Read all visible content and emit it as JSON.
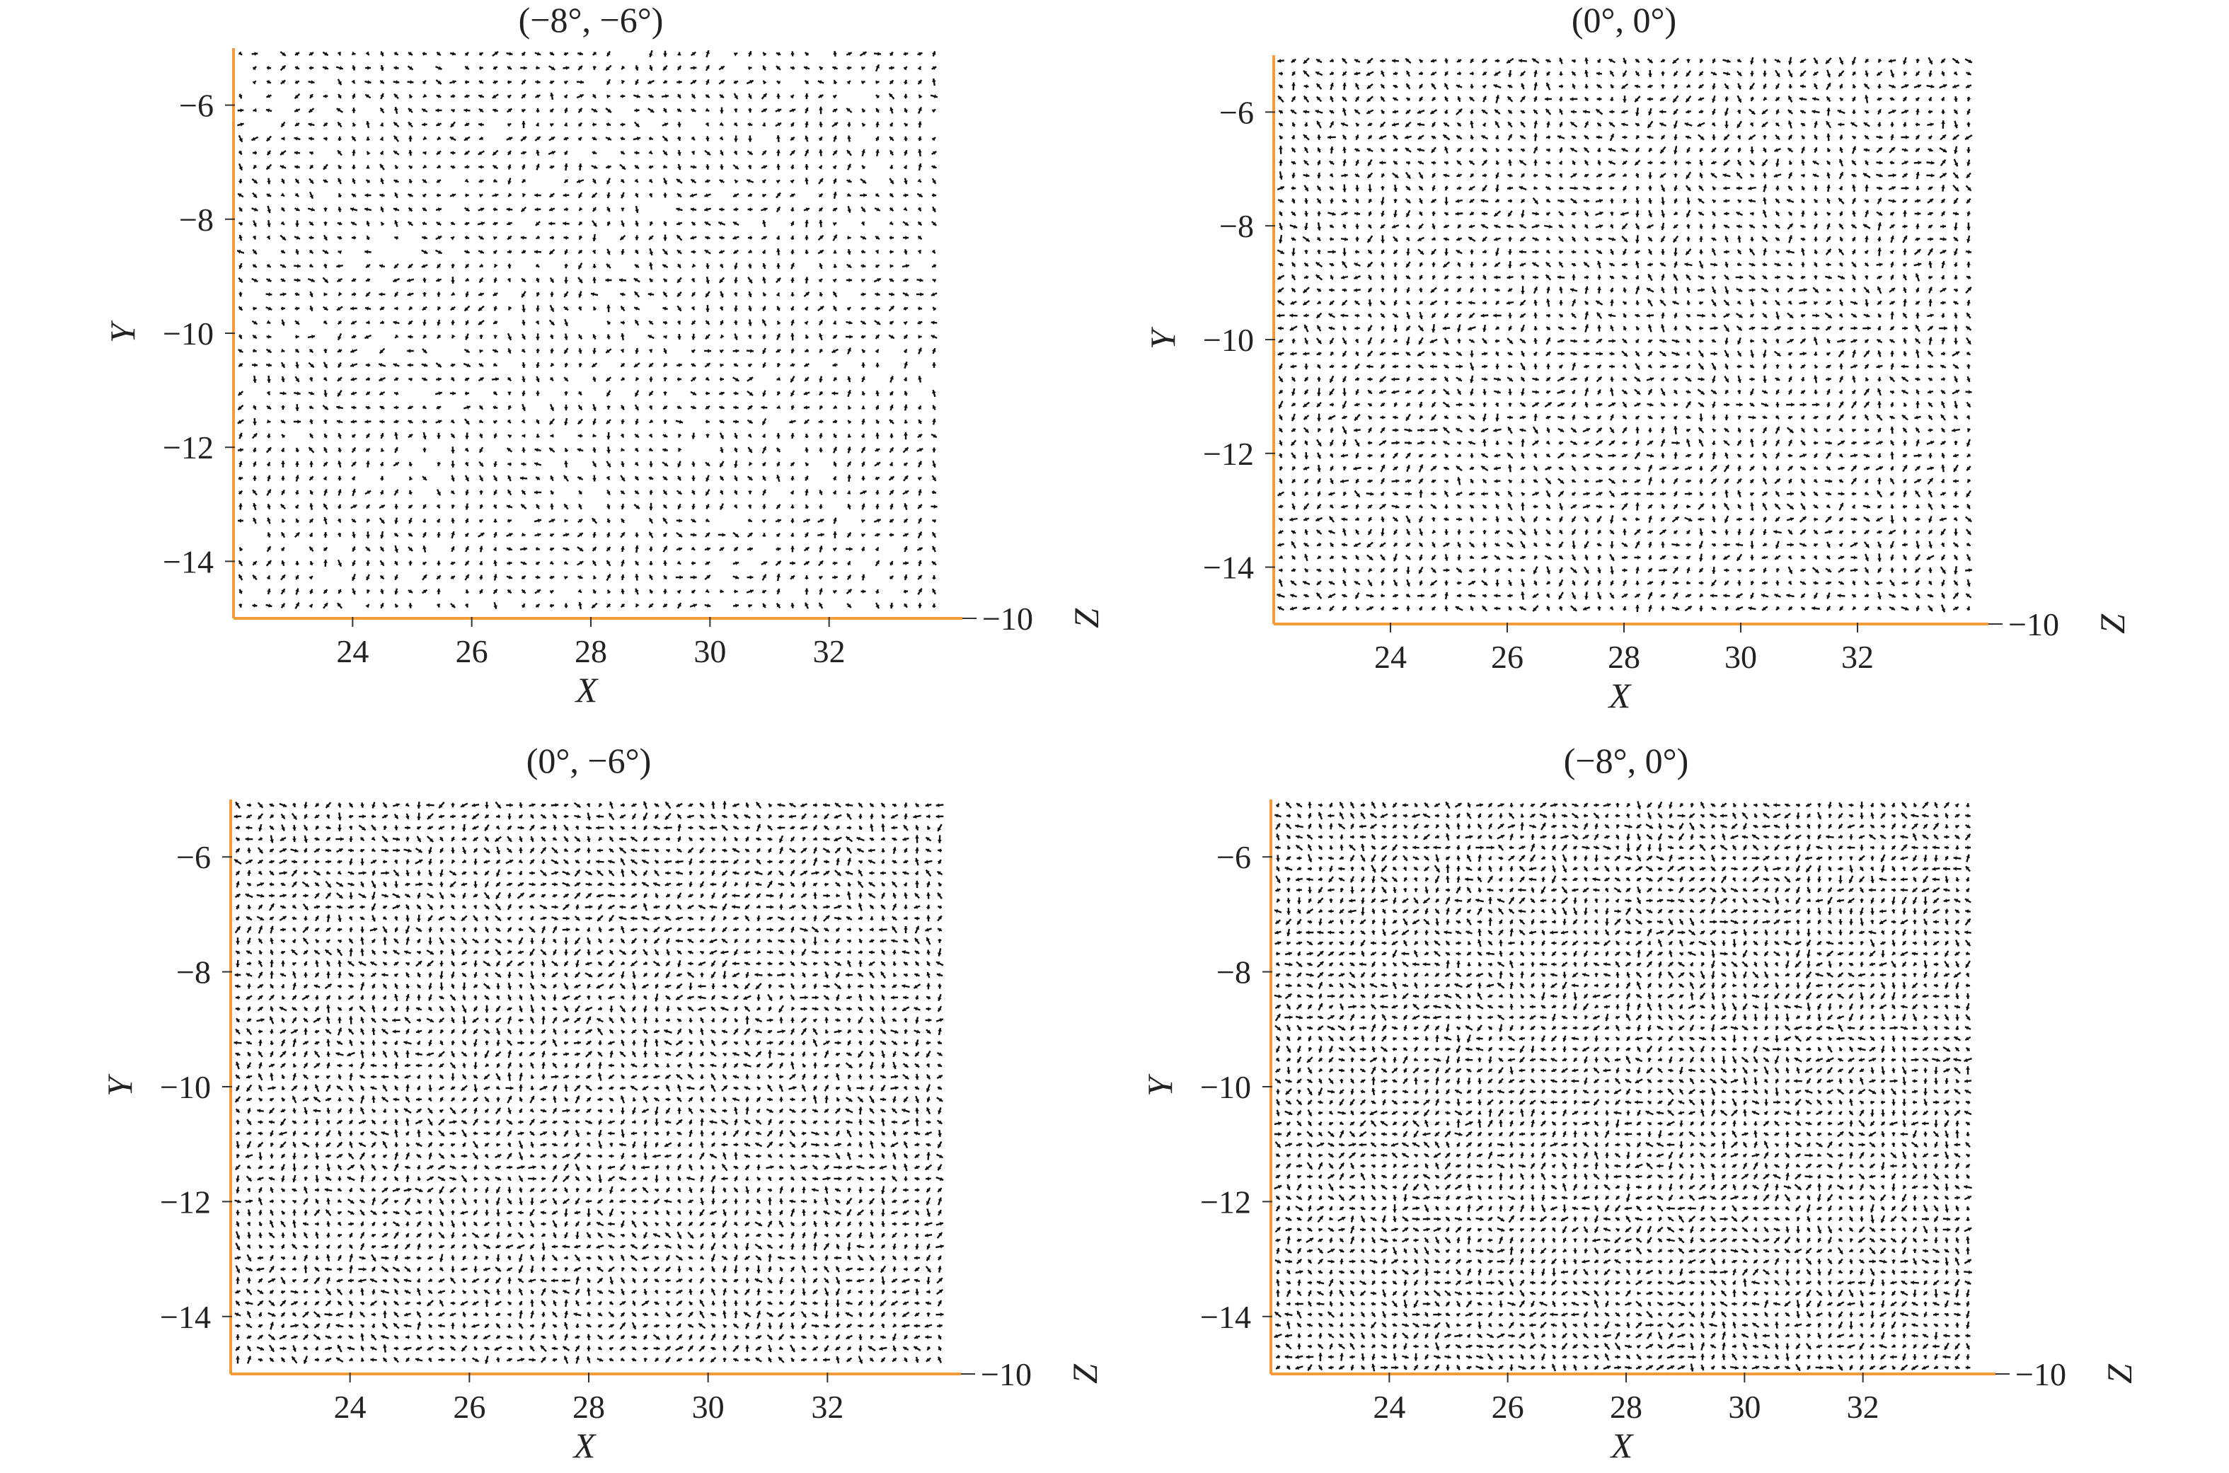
{
  "colors": {
    "axis": "#f39a3a",
    "arrow": "#111111",
    "text": "#222222"
  },
  "chart_data": [
    {
      "type": "scatter",
      "glyph": "3d-quiver-arrows",
      "title": "(−8°, −6°)",
      "xlabel": "X",
      "ylabel": "Y",
      "zlabel": "Z",
      "x_ticks": [
        "24",
        "26",
        "28",
        "30",
        "32"
      ],
      "x_tick_values": [
        24,
        26,
        28,
        30,
        32
      ],
      "y_ticks": [
        "−6",
        "−8",
        "−10",
        "−12",
        "−14"
      ],
      "y_tick_values": [
        -6,
        -8,
        -10,
        -12,
        -14
      ],
      "z_tick": "−10",
      "xlim": [
        22,
        34
      ],
      "ylim": [
        -15,
        -5
      ],
      "grid": false,
      "density": "sparse"
    },
    {
      "type": "scatter",
      "glyph": "3d-quiver-arrows",
      "title": "(0°, 0°)",
      "xlabel": "X",
      "ylabel": "Y",
      "zlabel": "Z",
      "x_ticks": [
        "24",
        "26",
        "28",
        "30",
        "32"
      ],
      "x_tick_values": [
        24,
        26,
        28,
        30,
        32
      ],
      "y_ticks": [
        "−6",
        "−8",
        "−10",
        "−12",
        "−14"
      ],
      "y_tick_values": [
        -6,
        -8,
        -10,
        -12,
        -14
      ],
      "z_tick": "−10",
      "xlim": [
        22,
        34
      ],
      "ylim": [
        -15,
        -5
      ],
      "grid": false,
      "density": "medium"
    },
    {
      "type": "scatter",
      "glyph": "3d-quiver-arrows",
      "title": "(0°, −6°)",
      "xlabel": "X",
      "ylabel": "Y",
      "zlabel": "Z",
      "x_ticks": [
        "24",
        "26",
        "28",
        "30",
        "32"
      ],
      "x_tick_values": [
        24,
        26,
        28,
        30,
        32
      ],
      "y_ticks": [
        "−6",
        "−8",
        "−10",
        "−12",
        "−14"
      ],
      "y_tick_values": [
        -6,
        -8,
        -10,
        -12,
        -14
      ],
      "z_tick": "−10",
      "xlim": [
        22,
        34
      ],
      "ylim": [
        -15,
        -5
      ],
      "grid": false,
      "density": "dense"
    },
    {
      "type": "scatter",
      "glyph": "3d-quiver-arrows",
      "title": "(−8°, 0°)",
      "xlabel": "X",
      "ylabel": "Y",
      "zlabel": "Z",
      "x_ticks": [
        "24",
        "26",
        "28",
        "30",
        "32"
      ],
      "x_tick_values": [
        24,
        26,
        28,
        30,
        32
      ],
      "y_ticks": [
        "−6",
        "−8",
        "−10",
        "−12",
        "−14"
      ],
      "y_tick_values": [
        -6,
        -8,
        -10,
        -12,
        -14
      ],
      "z_tick": "−10",
      "xlim": [
        22,
        34
      ],
      "ylim": [
        -15,
        -5
      ],
      "grid": false,
      "density": "very dense"
    }
  ]
}
